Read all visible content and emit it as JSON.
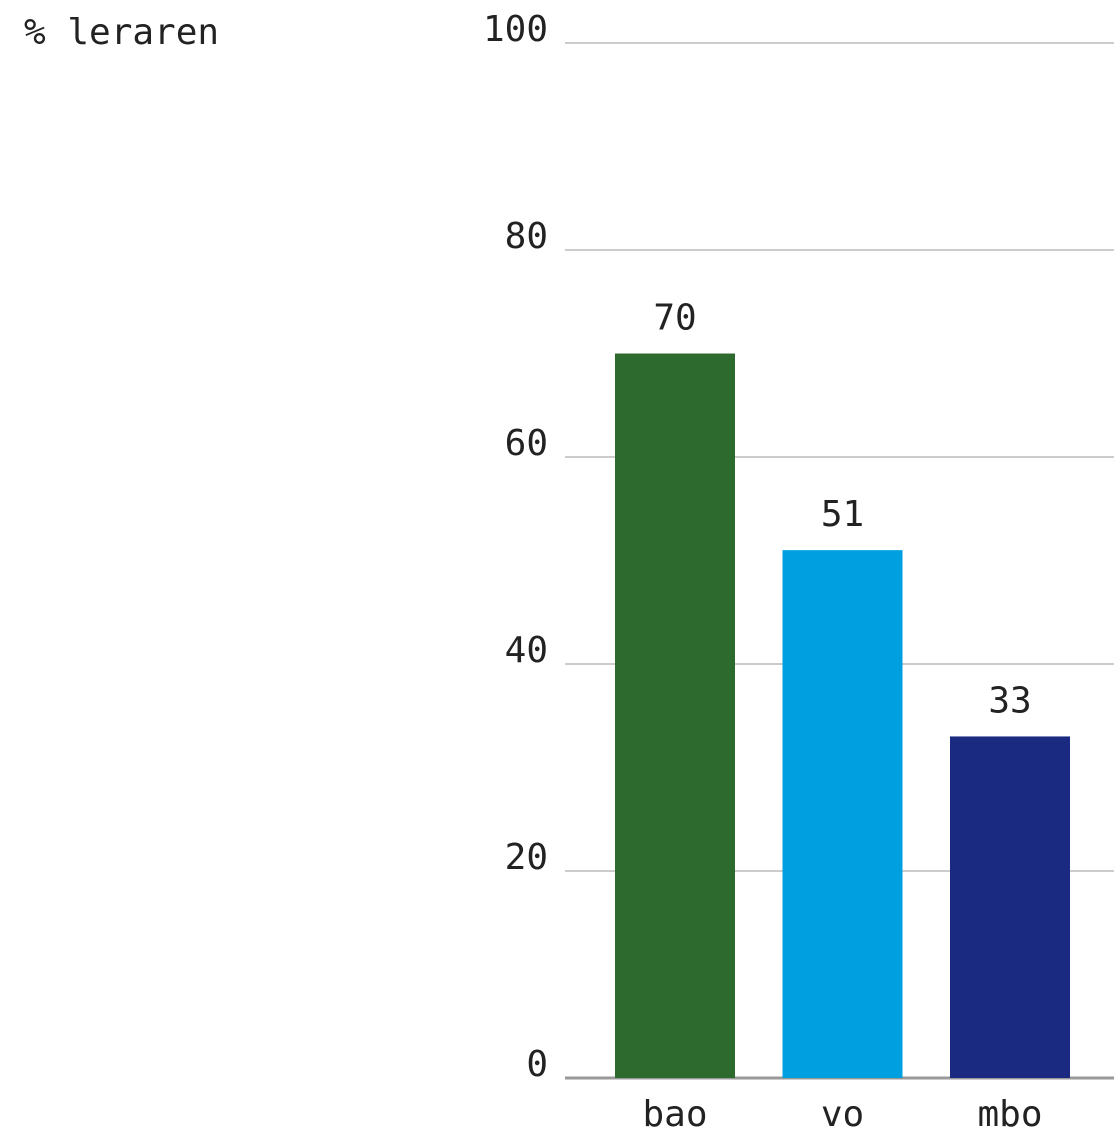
{
  "chart_data": {
    "type": "bar",
    "y_label": "% leraren",
    "categories": [
      "bao",
      "vo",
      "mbo"
    ],
    "values": [
      70,
      51,
      33
    ],
    "colors": [
      "#2d6a2d",
      "#009fe0",
      "#1a2a80"
    ],
    "ylim": [
      0,
      100
    ],
    "yticks": [
      0,
      20,
      40,
      60,
      80,
      100
    ],
    "grid": true
  }
}
